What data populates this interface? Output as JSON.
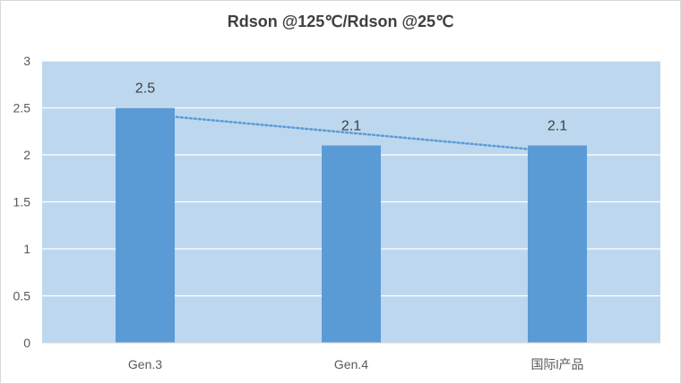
{
  "chart_data": {
    "type": "bar",
    "title": "Rdson @125℃/Rdson @25℃",
    "categories": [
      "Gen.3",
      "Gen.4",
      "国际l产品"
    ],
    "values": [
      2.5,
      2.1,
      2.1
    ],
    "data_labels": [
      "2.5",
      "2.1",
      "2.1"
    ],
    "ylim": [
      0,
      3
    ],
    "yticks": [
      "0",
      "0.5",
      "1",
      "1.5",
      "2",
      "2.5",
      "3"
    ],
    "grid": true,
    "trendline": "linear, dotted",
    "legend": "none",
    "colors": {
      "plot_area": "#bdd7ee",
      "bar": "#5b9bd5",
      "trendline": "#5b9bd5",
      "gridline": "#ffffff"
    }
  }
}
